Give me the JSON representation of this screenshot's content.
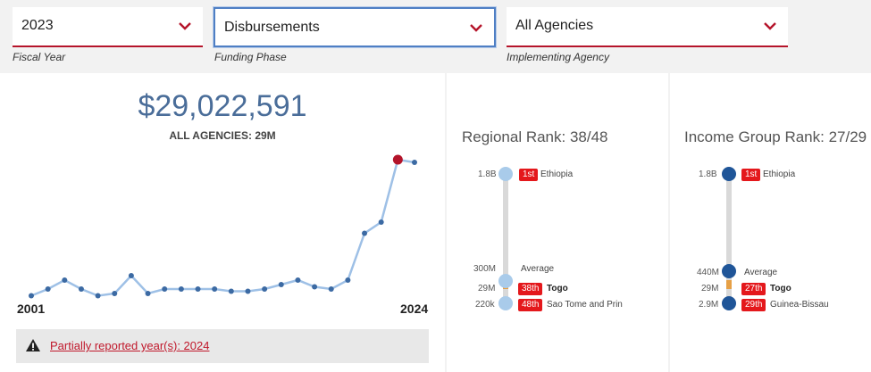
{
  "filters": [
    {
      "value": "2023",
      "label": "Fiscal Year"
    },
    {
      "value": "Disbursements",
      "label": "Funding Phase"
    },
    {
      "value": "All Agencies",
      "label": "Implementing Agency"
    }
  ],
  "summary": {
    "total": "$29,022,591",
    "subtitle": "ALL AGENCIES: 29M",
    "start_year": "2001",
    "end_year": "2024",
    "warning": "Partially reported year(s): 2024"
  },
  "chart_data": {
    "type": "line",
    "x": [
      2001,
      2002,
      2003,
      2004,
      2005,
      2006,
      2007,
      2008,
      2009,
      2010,
      2011,
      2012,
      2013,
      2014,
      2015,
      2016,
      2017,
      2018,
      2019,
      2020,
      2021,
      2022,
      2023,
      2024
    ],
    "values": [
      2.5,
      10,
      20,
      10,
      2.5,
      5,
      25,
      5,
      10,
      10,
      10,
      10,
      7.5,
      7.5,
      10,
      15,
      20,
      12.5,
      10,
      20,
      72.5,
      85,
      155,
      152
    ],
    "highlight_year": 2023,
    "ylim": [
      0,
      160
    ],
    "grid": false,
    "colors": {
      "line": "#9ec0e6",
      "point": "#3c6aa3",
      "highlight": "#b3142a"
    }
  },
  "regional": {
    "title": "Regional Rank: 38/48",
    "colors": {
      "dot": "#a9cbea",
      "track": "#d9d9d9",
      "fill": "#e6a046"
    },
    "rows": [
      {
        "value": "1.8B",
        "badge": "1st",
        "name": "Ethiopia"
      },
      {
        "value": "300M",
        "badge": "",
        "name": "Average"
      },
      {
        "value": "29M",
        "badge": "38th",
        "name": "Togo"
      },
      {
        "value": "220k",
        "badge": "48th",
        "name": "Sao Tome and Prin"
      }
    ]
  },
  "income": {
    "title": "Income Group Rank: 27/29",
    "colors": {
      "dot": "#1f5598",
      "track": "#d9d9d9",
      "fill": "#e6a046"
    },
    "rows": [
      {
        "value": "1.8B",
        "badge": "1st",
        "name": "Ethiopia"
      },
      {
        "value": "440M",
        "badge": "",
        "name": "Average"
      },
      {
        "value": "29M",
        "badge": "27th",
        "name": "Togo"
      },
      {
        "value": "2.9M",
        "badge": "29th",
        "name": "Guinea-Bissau"
      }
    ]
  }
}
